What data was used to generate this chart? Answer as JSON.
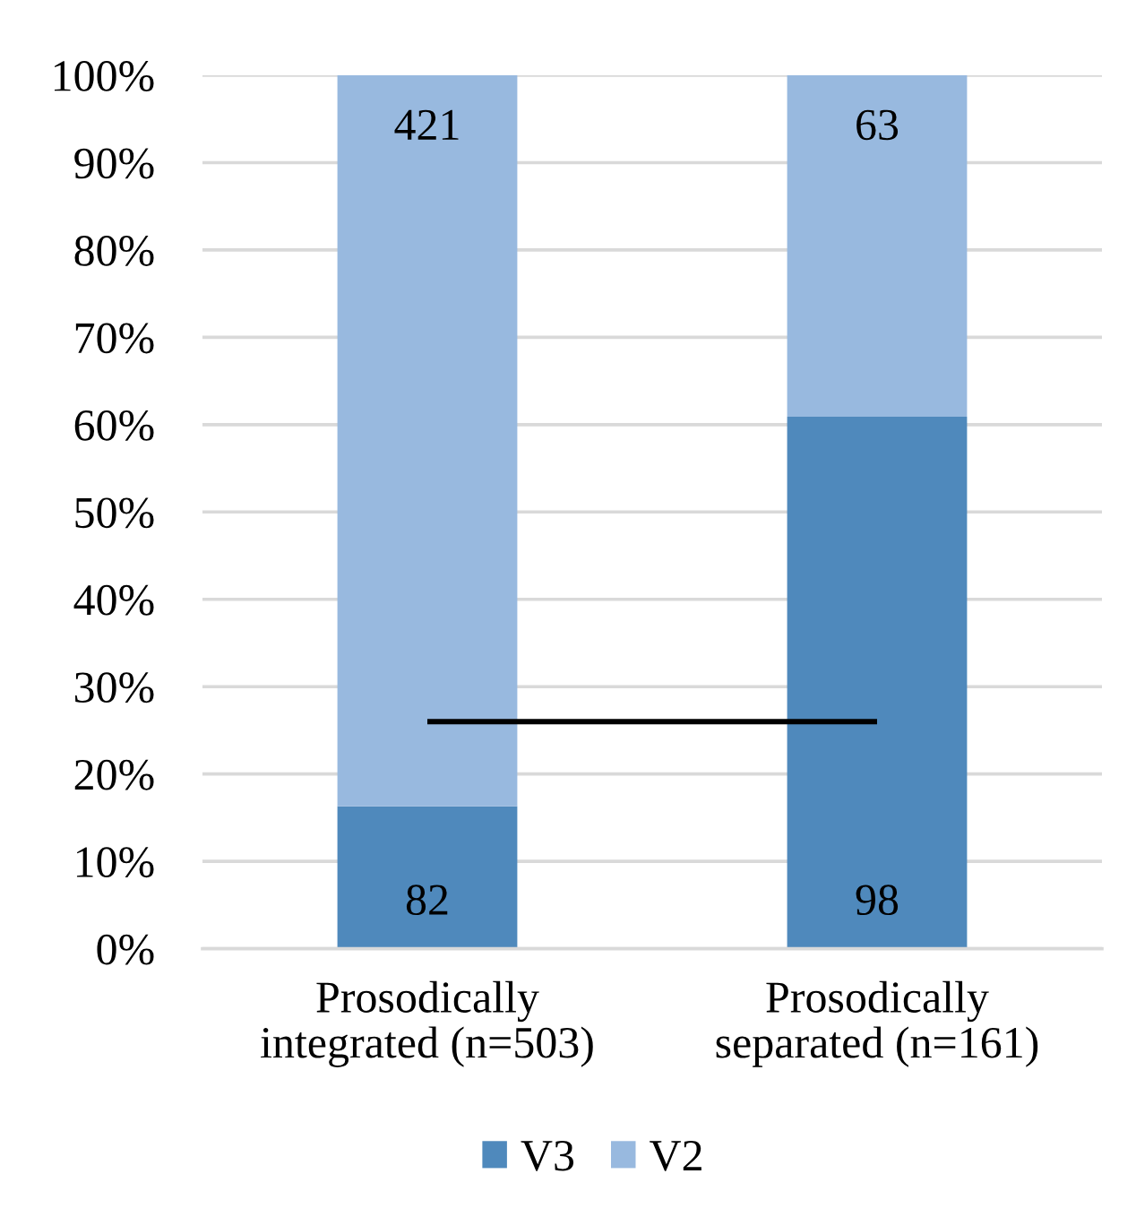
{
  "chart_data": {
    "type": "bar",
    "stacked": true,
    "categories": [
      "Prosodically\nintegrated (n=503)",
      "Prosodically\nseparated (n=161)"
    ],
    "series": [
      {
        "name": "V3",
        "color": "#4f89bc",
        "values": [
          16.3,
          60.9
        ]
      },
      {
        "name": "V2",
        "color": "#98b9df",
        "values": [
          83.7,
          39.1
        ]
      },
      {
        "type": "line",
        "color": "#000000",
        "values": [
          26,
          26
        ]
      }
    ],
    "annotations": [
      {
        "text": "421",
        "x": "Prosodically\nintegrated (n=503)",
        "y": 100
      },
      {
        "text": "82",
        "x": "Prosodically\nintegrated (n=503)",
        "y": 0
      },
      {
        "text": "63",
        "x": "Prosodically\nseparated (n=161)",
        "y": 100
      },
      {
        "text": "98",
        "x": "Prosodically\nseparated (n=161)",
        "y": 0
      }
    ],
    "ylim": [
      0,
      100
    ],
    "yticks": [
      {
        "value": 0,
        "label": "0%"
      },
      {
        "value": 10,
        "label": "10%"
      },
      {
        "value": 20,
        "label": "20%"
      },
      {
        "value": 30,
        "label": "30%"
      },
      {
        "value": 40,
        "label": "40%"
      },
      {
        "value": 50,
        "label": "50%"
      },
      {
        "value": 60,
        "label": "60%"
      },
      {
        "value": 70,
        "label": "70%"
      },
      {
        "value": 80,
        "label": "80%"
      },
      {
        "value": 90,
        "label": "90%"
      },
      {
        "value": 100,
        "label": "100%"
      }
    ],
    "grid": "y",
    "legend": "bottom"
  }
}
